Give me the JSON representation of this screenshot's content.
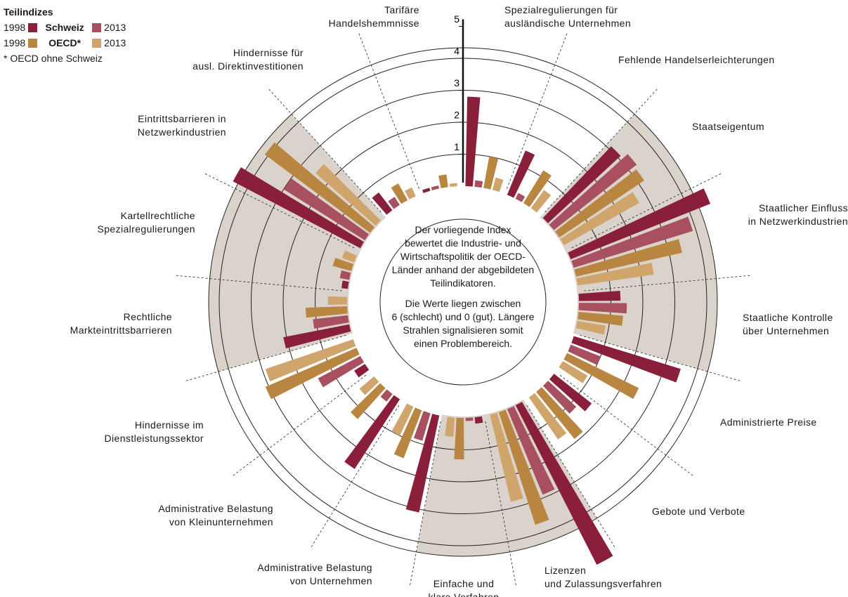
{
  "chart_data": {
    "type": "radial-bar",
    "categories": [
      "Spezialregulierungen für\nausländische Unternehmen",
      "Fehlende Handelserleichterungen",
      "Staatseigentum",
      "Staatlicher Einfluss\nin Netzwerkindustrien",
      "Staatliche Kontrolle\nüber Unternehmen",
      "Administrierte Preise",
      "Gebote und Verbote",
      "Lizenzen\nund Zulassungsverfahren",
      "Einfache und\nklare Verfahren",
      "Administrative Belastung\nvon Unternehmen",
      "Administrative Belastung\nvon Kleinunternehmen",
      "Hindernisse im\nDienstleistungssektor",
      "Rechtliche\nMarkteintrittsbarrieren",
      "Kartellrechtliche\nSpezialregulierungen",
      "Eintrittsbarrieren in\nNetzwerkindustrien",
      "Hindernisse für\nausl. Direktinvestitionen",
      "Tarifäre\nHandelshemmnisse"
    ],
    "series": [
      {
        "color": "#8a1f3b",
        "values": [
          2.8,
          1.5,
          3.1,
          4.7,
          1.3,
          3.5,
          1.5,
          5.6,
          0.2,
          3.1,
          2.6,
          0.4,
          2.1,
          0.2,
          4.5,
          0.7,
          0.1
        ]
      },
      {
        "color": "#a8505f",
        "values": [
          0.2,
          0.2,
          3.3,
          3.9,
          1.5,
          1.0,
          1.2,
          2.9,
          0.1,
          0.9,
          0.3,
          1.5,
          1.1,
          0.3,
          3.0,
          0.3,
          0.1
        ]
      },
      {
        "color": "#b88640",
        "values": [
          1.0,
          1.2,
          3.2,
          3.4,
          1.4,
          2.5,
          1.9,
          3.7,
          1.3,
          1.6,
          1.3,
          3.1,
          1.3,
          0.6,
          4.1,
          0.6,
          0.4
        ]
      },
      {
        "color": "#d0a56c",
        "values": [
          0.4,
          0.7,
          2.7,
          2.4,
          0.9,
          0.9,
          1.6,
          2.8,
          0.6,
          1.0,
          0.6,
          2.9,
          0.6,
          0.4,
          2.5,
          0.3,
          0.1
        ]
      }
    ],
    "rlim": [
      0,
      5
    ],
    "rticks": [
      1,
      2,
      3,
      4,
      5
    ],
    "legend": {
      "title": "Teilindizes",
      "groups": [
        {
          "name": "Schweiz",
          "years": [
            "1998",
            "2013"
          ]
        },
        {
          "name": "OECD*",
          "years": [
            "1998",
            "2013"
          ]
        }
      ],
      "note": "* OECD ohne Schweiz"
    },
    "annotation": [
      "Der vorliegende Index\nbewertet die Industrie- und\nWirtschaftspolitik der OECD-\nLänder anhand der abgebildeten\nTeilindikatoren.",
      "Die Werte liegen zwischen\n6 (schlecht) und 0 (gut). Längere\nStrahlen signalisieren somit\neinen Problembereich."
    ]
  }
}
